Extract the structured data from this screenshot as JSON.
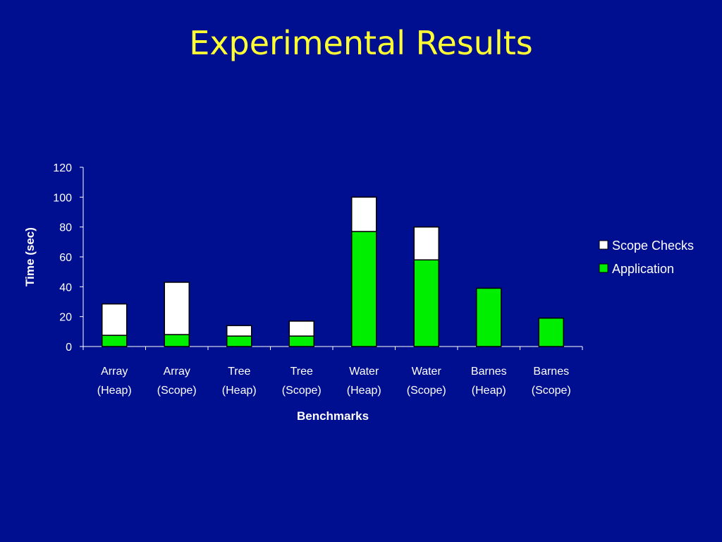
{
  "slide": {
    "title": "Experimental Results"
  },
  "chart_data": {
    "type": "bar",
    "stacked": true,
    "categories": [
      [
        "Array",
        "(Heap)"
      ],
      [
        "Array",
        "(Scope)"
      ],
      [
        "Tree",
        "(Heap)"
      ],
      [
        "Tree",
        "(Scope)"
      ],
      [
        "Water",
        "(Heap)"
      ],
      [
        "Water",
        "(Scope)"
      ],
      [
        "Barnes",
        "(Heap)"
      ],
      [
        "Barnes",
        "(Scope)"
      ]
    ],
    "series": [
      {
        "name": "Application",
        "color": "#00ee00",
        "values": [
          7.5,
          8,
          7,
          7,
          77,
          58,
          39,
          19
        ]
      },
      {
        "name": "Scope Checks",
        "color": "#ffffff",
        "values": [
          21,
          35,
          7,
          10,
          23,
          22,
          0,
          0
        ]
      }
    ],
    "legend": [
      "Scope Checks",
      "Application"
    ],
    "xlabel": "Benchmarks",
    "ylabel": "Time (sec)",
    "ylim": [
      0,
      120
    ],
    "yticks": [
      0,
      20,
      40,
      60,
      80,
      100,
      120
    ],
    "grid": false,
    "legend_position": "right",
    "colors": {
      "background": "#000f8f",
      "title": "#ffff33",
      "text": "#ffffff",
      "axis": "#ffffff"
    }
  }
}
